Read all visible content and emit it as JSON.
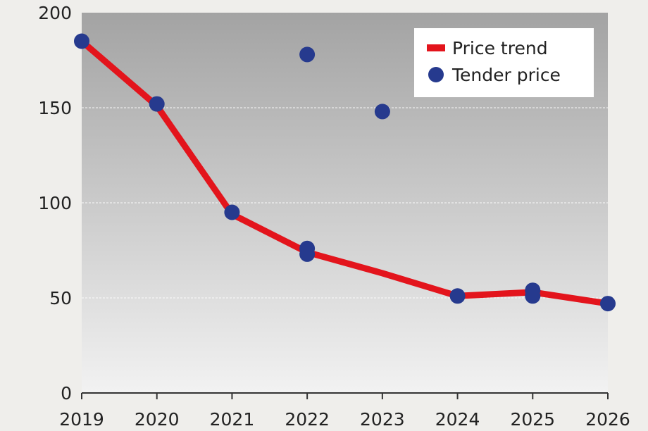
{
  "chart_data": {
    "type": "line",
    "title": "",
    "xlabel": "",
    "ylabel": "",
    "xlim": [
      2019,
      2026
    ],
    "ylim": [
      0,
      200
    ],
    "x_ticks": [
      "2019",
      "2020",
      "2021",
      "2022",
      "2023",
      "2024",
      "2025",
      "2026"
    ],
    "y_ticks": [
      "0",
      "50",
      "100",
      "150",
      "200"
    ],
    "grid": {
      "horizontal": true,
      "vertical": false
    },
    "legend_position": "top-right",
    "series": [
      {
        "name": "Price trend",
        "type": "line",
        "color": "#e3141c",
        "x": [
          2019,
          2020,
          2021,
          2022,
          2023,
          2024,
          2025,
          2026
        ],
        "y": [
          185,
          151,
          94,
          74,
          63,
          51,
          53,
          47
        ]
      },
      {
        "name": "Tender price",
        "type": "scatter",
        "color": "#263a8e",
        "x": [
          2019,
          2020,
          2021,
          2022,
          2022,
          2022,
          2023,
          2024,
          2025,
          2025,
          2026
        ],
        "y": [
          185,
          152,
          95,
          178,
          76,
          73,
          148,
          51,
          54,
          51,
          47
        ]
      }
    ]
  },
  "colors": {
    "background": "#efeeeb",
    "plot_top": "#a3a3a3",
    "plot_bottom": "#f2f2f2",
    "axis": "#333333",
    "grid": "#ffffff"
  }
}
